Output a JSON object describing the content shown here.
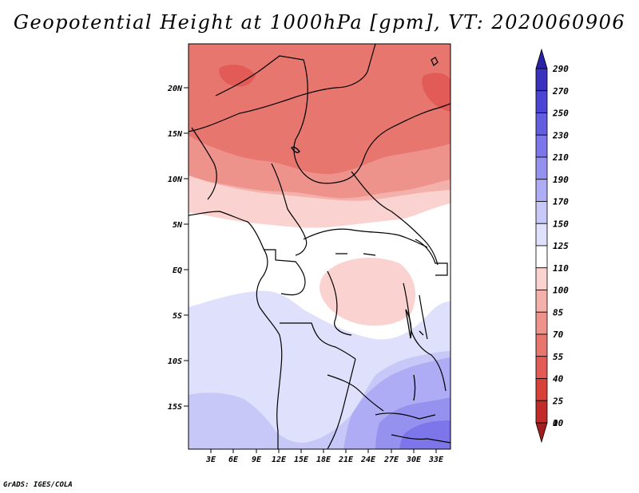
{
  "title": "Geopotential Height at 1000hPa [gpm], VT: 2020060906",
  "credit": "GrADS: IGES/COLA",
  "map": {
    "lat_labels": [
      "20N",
      "15N",
      "10N",
      "5N",
      "EQ",
      "5S",
      "10S",
      "15S"
    ],
    "lon_labels": [
      "3E",
      "6E",
      "9E",
      "12E",
      "15E",
      "18E",
      "21E",
      "24E",
      "27E",
      "30E",
      "33E"
    ]
  },
  "colorbar": {
    "levels": [
      "0",
      "10",
      "25",
      "40",
      "55",
      "70",
      "85",
      "100",
      "110",
      "125",
      "150",
      "170",
      "190",
      "210",
      "230",
      "250",
      "270",
      "290"
    ],
    "colors": [
      "#a11d1e",
      "#c12b2a",
      "#d8403a",
      "#e25b57",
      "#e7766f",
      "#ee938c",
      "#f4b0aa",
      "#fad2cf",
      "#ffffff",
      "#dfe0fb",
      "#c7c8f8",
      "#aeacf4",
      "#9592ef",
      "#7c76ea",
      "#635de0",
      "#4b44d4",
      "#3a31bf",
      "#2a22a4"
    ]
  }
}
